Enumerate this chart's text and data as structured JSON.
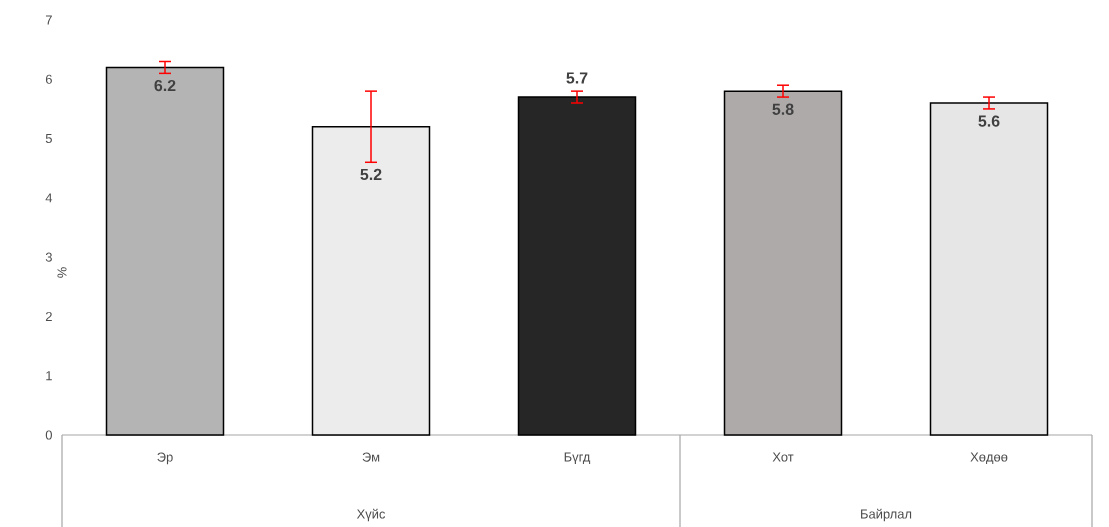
{
  "chart_data": {
    "type": "bar",
    "ylabel": "%",
    "categories": [
      "Эр",
      "Эм",
      "Бүгд",
      "Хот",
      "Хөдөө"
    ],
    "values": [
      6.2,
      5.2,
      5.7,
      5.8,
      5.6
    ],
    "errors": [
      0.1,
      0.6,
      0.1,
      0.1,
      0.1
    ],
    "colors": [
      "#b4b4b4",
      "#ececec",
      "#262626",
      "#aeaaaa",
      "#e7e6e6"
    ],
    "ylim": [
      0,
      7
    ],
    "yticks": [
      0,
      1,
      2,
      3,
      4,
      5,
      6,
      7
    ],
    "data_labels": true,
    "annotations": [
      "Хүйс",
      "Байрлал"
    ]
  }
}
